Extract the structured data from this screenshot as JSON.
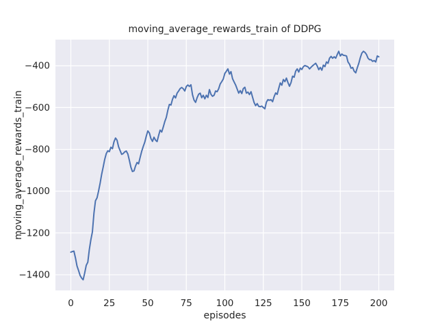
{
  "figure": {
    "title": "moving_average_rewards_train of DDPG",
    "xlabel": "episodes",
    "ylabel": "moving_average_rewards_train",
    "colors": {
      "figure_bg": "#ffffff",
      "plot_bg": "#eaeaf2",
      "grid": "#ffffff",
      "line": "#4c72b0",
      "text": "#262626"
    }
  },
  "chart_data": {
    "type": "line",
    "title": "moving_average_rewards_train of DDPG",
    "xlabel": "episodes",
    "ylabel": "moving_average_rewards_train",
    "legend": null,
    "grid": true,
    "xlim": [
      -10,
      210
    ],
    "ylim": [
      -1475,
      -275
    ],
    "x_ticks": [
      0,
      25,
      50,
      75,
      100,
      125,
      150,
      175,
      200
    ],
    "y_ticks": [
      -400,
      -600,
      -800,
      -1000,
      -1200,
      -1400
    ],
    "series": [
      {
        "name": "moving_average_rewards_train",
        "x_start": 0,
        "x_step": 1,
        "values": [
          -1292,
          -1289,
          -1287,
          -1320,
          -1358,
          -1380,
          -1403,
          -1416,
          -1424,
          -1391,
          -1355,
          -1340,
          -1280,
          -1232,
          -1195,
          -1105,
          -1046,
          -1032,
          -1000,
          -962,
          -920,
          -884,
          -848,
          -820,
          -807,
          -811,
          -790,
          -797,
          -764,
          -746,
          -756,
          -788,
          -806,
          -824,
          -820,
          -812,
          -808,
          -822,
          -852,
          -886,
          -906,
          -903,
          -880,
          -863,
          -869,
          -838,
          -810,
          -786,
          -766,
          -736,
          -712,
          -722,
          -748,
          -762,
          -742,
          -756,
          -763,
          -733,
          -708,
          -717,
          -694,
          -667,
          -647,
          -612,
          -585,
          -588,
          -561,
          -543,
          -554,
          -531,
          -521,
          -509,
          -504,
          -510,
          -521,
          -499,
          -492,
          -499,
          -491,
          -539,
          -564,
          -575,
          -553,
          -536,
          -531,
          -553,
          -541,
          -558,
          -541,
          -552,
          -514,
          -537,
          -546,
          -541,
          -521,
          -524,
          -510,
          -487,
          -476,
          -463,
          -437,
          -426,
          -415,
          -440,
          -428,
          -462,
          -477,
          -492,
          -511,
          -531,
          -519,
          -533,
          -509,
          -503,
          -531,
          -526,
          -538,
          -524,
          -550,
          -576,
          -591,
          -581,
          -594,
          -596,
          -593,
          -600,
          -606,
          -574,
          -562,
          -565,
          -562,
          -572,
          -548,
          -530,
          -537,
          -508,
          -482,
          -493,
          -466,
          -476,
          -459,
          -481,
          -498,
          -480,
          -450,
          -455,
          -426,
          -415,
          -430,
          -411,
          -418,
          -404,
          -399,
          -402,
          -405,
          -415,
          -407,
          -400,
          -394,
          -388,
          -401,
          -419,
          -408,
          -421,
          -397,
          -404,
          -382,
          -388,
          -364,
          -355,
          -364,
          -357,
          -364,
          -346,
          -331,
          -353,
          -344,
          -350,
          -351,
          -353,
          -382,
          -393,
          -412,
          -408,
          -426,
          -434,
          -410,
          -388,
          -361,
          -339,
          -331,
          -336,
          -346,
          -364,
          -371,
          -371,
          -379,
          -375,
          -382,
          -353,
          -357
        ]
      }
    ]
  }
}
